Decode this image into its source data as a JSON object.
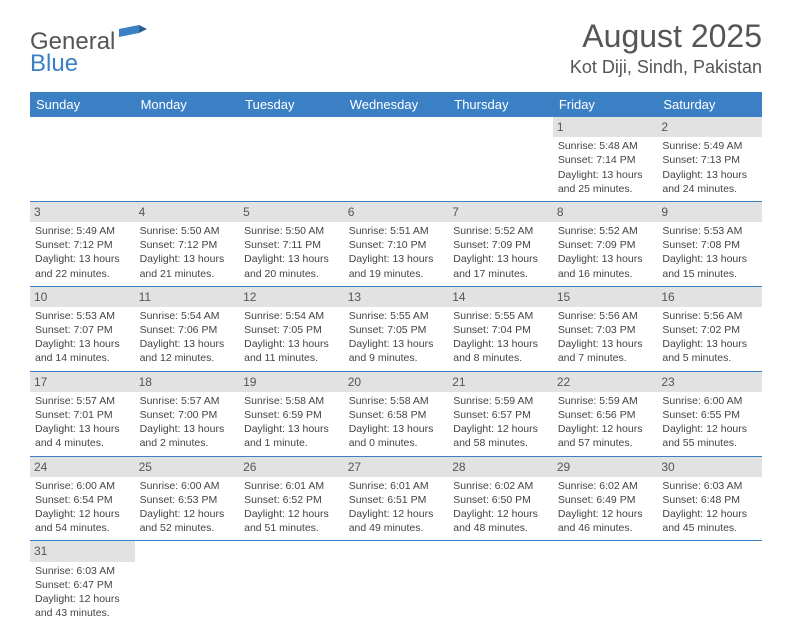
{
  "logo": {
    "part1": "General",
    "part2": "Blue"
  },
  "title": "August 2025",
  "location": "Kot Diji, Sindh, Pakistan",
  "colors": {
    "header_bg": "#3b7fc4",
    "header_text": "#ffffff",
    "daynum_bg": "#e2e2e2",
    "text": "#444444",
    "rule": "#3b7fc4"
  },
  "typography": {
    "title_fontsize": 32,
    "location_fontsize": 18,
    "dayheader_fontsize": 13,
    "cell_fontsize": 10.5
  },
  "day_headers": [
    "Sunday",
    "Monday",
    "Tuesday",
    "Wednesday",
    "Thursday",
    "Friday",
    "Saturday"
  ],
  "weeks": [
    [
      null,
      null,
      null,
      null,
      null,
      {
        "n": "1",
        "sr": "Sunrise: 5:48 AM",
        "ss": "Sunset: 7:14 PM",
        "dl": "Daylight: 13 hours and 25 minutes."
      },
      {
        "n": "2",
        "sr": "Sunrise: 5:49 AM",
        "ss": "Sunset: 7:13 PM",
        "dl": "Daylight: 13 hours and 24 minutes."
      }
    ],
    [
      {
        "n": "3",
        "sr": "Sunrise: 5:49 AM",
        "ss": "Sunset: 7:12 PM",
        "dl": "Daylight: 13 hours and 22 minutes."
      },
      {
        "n": "4",
        "sr": "Sunrise: 5:50 AM",
        "ss": "Sunset: 7:12 PM",
        "dl": "Daylight: 13 hours and 21 minutes."
      },
      {
        "n": "5",
        "sr": "Sunrise: 5:50 AM",
        "ss": "Sunset: 7:11 PM",
        "dl": "Daylight: 13 hours and 20 minutes."
      },
      {
        "n": "6",
        "sr": "Sunrise: 5:51 AM",
        "ss": "Sunset: 7:10 PM",
        "dl": "Daylight: 13 hours and 19 minutes."
      },
      {
        "n": "7",
        "sr": "Sunrise: 5:52 AM",
        "ss": "Sunset: 7:09 PM",
        "dl": "Daylight: 13 hours and 17 minutes."
      },
      {
        "n": "8",
        "sr": "Sunrise: 5:52 AM",
        "ss": "Sunset: 7:09 PM",
        "dl": "Daylight: 13 hours and 16 minutes."
      },
      {
        "n": "9",
        "sr": "Sunrise: 5:53 AM",
        "ss": "Sunset: 7:08 PM",
        "dl": "Daylight: 13 hours and 15 minutes."
      }
    ],
    [
      {
        "n": "10",
        "sr": "Sunrise: 5:53 AM",
        "ss": "Sunset: 7:07 PM",
        "dl": "Daylight: 13 hours and 14 minutes."
      },
      {
        "n": "11",
        "sr": "Sunrise: 5:54 AM",
        "ss": "Sunset: 7:06 PM",
        "dl": "Daylight: 13 hours and 12 minutes."
      },
      {
        "n": "12",
        "sr": "Sunrise: 5:54 AM",
        "ss": "Sunset: 7:05 PM",
        "dl": "Daylight: 13 hours and 11 minutes."
      },
      {
        "n": "13",
        "sr": "Sunrise: 5:55 AM",
        "ss": "Sunset: 7:05 PM",
        "dl": "Daylight: 13 hours and 9 minutes."
      },
      {
        "n": "14",
        "sr": "Sunrise: 5:55 AM",
        "ss": "Sunset: 7:04 PM",
        "dl": "Daylight: 13 hours and 8 minutes."
      },
      {
        "n": "15",
        "sr": "Sunrise: 5:56 AM",
        "ss": "Sunset: 7:03 PM",
        "dl": "Daylight: 13 hours and 7 minutes."
      },
      {
        "n": "16",
        "sr": "Sunrise: 5:56 AM",
        "ss": "Sunset: 7:02 PM",
        "dl": "Daylight: 13 hours and 5 minutes."
      }
    ],
    [
      {
        "n": "17",
        "sr": "Sunrise: 5:57 AM",
        "ss": "Sunset: 7:01 PM",
        "dl": "Daylight: 13 hours and 4 minutes."
      },
      {
        "n": "18",
        "sr": "Sunrise: 5:57 AM",
        "ss": "Sunset: 7:00 PM",
        "dl": "Daylight: 13 hours and 2 minutes."
      },
      {
        "n": "19",
        "sr": "Sunrise: 5:58 AM",
        "ss": "Sunset: 6:59 PM",
        "dl": "Daylight: 13 hours and 1 minute."
      },
      {
        "n": "20",
        "sr": "Sunrise: 5:58 AM",
        "ss": "Sunset: 6:58 PM",
        "dl": "Daylight: 13 hours and 0 minutes."
      },
      {
        "n": "21",
        "sr": "Sunrise: 5:59 AM",
        "ss": "Sunset: 6:57 PM",
        "dl": "Daylight: 12 hours and 58 minutes."
      },
      {
        "n": "22",
        "sr": "Sunrise: 5:59 AM",
        "ss": "Sunset: 6:56 PM",
        "dl": "Daylight: 12 hours and 57 minutes."
      },
      {
        "n": "23",
        "sr": "Sunrise: 6:00 AM",
        "ss": "Sunset: 6:55 PM",
        "dl": "Daylight: 12 hours and 55 minutes."
      }
    ],
    [
      {
        "n": "24",
        "sr": "Sunrise: 6:00 AM",
        "ss": "Sunset: 6:54 PM",
        "dl": "Daylight: 12 hours and 54 minutes."
      },
      {
        "n": "25",
        "sr": "Sunrise: 6:00 AM",
        "ss": "Sunset: 6:53 PM",
        "dl": "Daylight: 12 hours and 52 minutes."
      },
      {
        "n": "26",
        "sr": "Sunrise: 6:01 AM",
        "ss": "Sunset: 6:52 PM",
        "dl": "Daylight: 12 hours and 51 minutes."
      },
      {
        "n": "27",
        "sr": "Sunrise: 6:01 AM",
        "ss": "Sunset: 6:51 PM",
        "dl": "Daylight: 12 hours and 49 minutes."
      },
      {
        "n": "28",
        "sr": "Sunrise: 6:02 AM",
        "ss": "Sunset: 6:50 PM",
        "dl": "Daylight: 12 hours and 48 minutes."
      },
      {
        "n": "29",
        "sr": "Sunrise: 6:02 AM",
        "ss": "Sunset: 6:49 PM",
        "dl": "Daylight: 12 hours and 46 minutes."
      },
      {
        "n": "30",
        "sr": "Sunrise: 6:03 AM",
        "ss": "Sunset: 6:48 PM",
        "dl": "Daylight: 12 hours and 45 minutes."
      }
    ],
    [
      {
        "n": "31",
        "sr": "Sunrise: 6:03 AM",
        "ss": "Sunset: 6:47 PM",
        "dl": "Daylight: 12 hours and 43 minutes."
      },
      null,
      null,
      null,
      null,
      null,
      null
    ]
  ]
}
